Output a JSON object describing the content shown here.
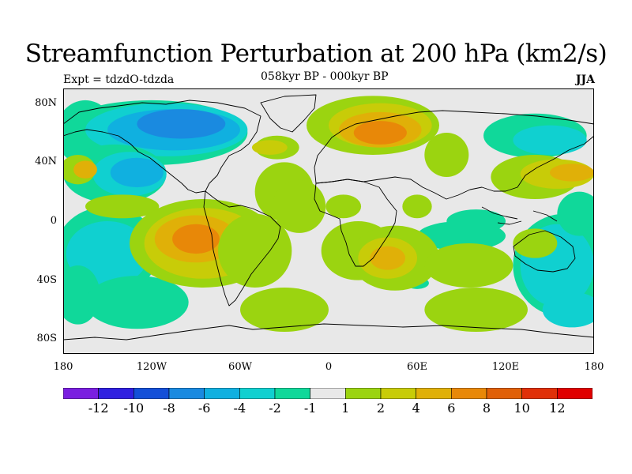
{
  "title": "Streamfunction Perturbation at 200 hPa (km2/s)",
  "subtitle_left": "Expt = tdzdO-tdzda",
  "subtitle_center": "058kyr BP - 000kyr BP",
  "subtitle_right": "JJA",
  "lat_ticks": [
    {
      "label": "80N",
      "value": 80
    },
    {
      "label": "40N",
      "value": 40
    },
    {
      "label": "0",
      "value": 0
    },
    {
      "label": "40S",
      "value": -40
    },
    {
      "label": "80S",
      "value": -80
    }
  ],
  "lon_ticks": [
    {
      "label": "180",
      "value": -180
    },
    {
      "label": "120W",
      "value": -120
    },
    {
      "label": "60W",
      "value": -60
    },
    {
      "label": "0",
      "value": 0
    },
    {
      "label": "60E",
      "value": 60
    },
    {
      "label": "120E",
      "value": 120
    },
    {
      "label": "180",
      "value": 180
    }
  ],
  "colorbar": {
    "colors": [
      "#7a1fe0",
      "#3020e0",
      "#1450d8",
      "#1a8ae0",
      "#10b0e0",
      "#10d0d0",
      "#10d89a",
      "#e8e8e8",
      "#9bd410",
      "#c8cc08",
      "#e0b008",
      "#e88808",
      "#e06008",
      "#e03008",
      "#e00000"
    ],
    "labels": [
      "-12",
      "-10",
      "-8",
      "-6",
      "-4",
      "-2",
      "-1",
      "1",
      "2",
      "4",
      "6",
      "8",
      "10",
      "12"
    ]
  },
  "map_extent": {
    "lon": [
      -180,
      180
    ],
    "lat": [
      -90,
      90
    ]
  },
  "map_colors": {
    "background": "#e8e8e8",
    "coast": "#000000"
  },
  "anomaly_blobs": [
    {
      "lon": -165,
      "lat": 60,
      "rx": 20,
      "ry": 22,
      "level": -1
    },
    {
      "lon": -120,
      "lat": 60,
      "rx": 65,
      "ry": 22,
      "level": -1
    },
    {
      "lon": -110,
      "lat": 62,
      "rx": 55,
      "ry": 18,
      "level": -2
    },
    {
      "lon": -105,
      "lat": 62,
      "rx": 45,
      "ry": 14,
      "level": -4
    },
    {
      "lon": -100,
      "lat": 66,
      "rx": 30,
      "ry": 10,
      "level": -6
    },
    {
      "lon": -145,
      "lat": 32,
      "rx": 35,
      "ry": 20,
      "level": -1
    },
    {
      "lon": -135,
      "lat": 32,
      "rx": 25,
      "ry": 15,
      "level": -2
    },
    {
      "lon": -130,
      "lat": 33,
      "rx": 18,
      "ry": 10,
      "level": -4
    },
    {
      "lon": -150,
      "lat": -20,
      "rx": 35,
      "ry": 30,
      "level": -1
    },
    {
      "lon": -150,
      "lat": -22,
      "rx": 28,
      "ry": 22,
      "level": -2
    },
    {
      "lon": -170,
      "lat": -50,
      "rx": 15,
      "ry": 20,
      "level": -1
    },
    {
      "lon": -130,
      "lat": -55,
      "rx": 35,
      "ry": 18,
      "level": -1
    },
    {
      "lon": -45,
      "lat": -35,
      "rx": 8,
      "ry": 5,
      "level": -1
    },
    {
      "lon": 140,
      "lat": 58,
      "rx": 35,
      "ry": 15,
      "level": -1
    },
    {
      "lon": 150,
      "lat": 55,
      "rx": 25,
      "ry": 10,
      "level": -2
    },
    {
      "lon": 160,
      "lat": -30,
      "rx": 35,
      "ry": 35,
      "level": -1
    },
    {
      "lon": 155,
      "lat": -30,
      "rx": 25,
      "ry": 28,
      "level": -2
    },
    {
      "lon": 165,
      "lat": -60,
      "rx": 20,
      "ry": 12,
      "level": -2
    },
    {
      "lon": 170,
      "lat": 5,
      "rx": 15,
      "ry": 15,
      "level": -1
    },
    {
      "lon": 90,
      "lat": -10,
      "rx": 30,
      "ry": 10,
      "level": -1
    },
    {
      "lon": 100,
      "lat": 0,
      "rx": 20,
      "ry": 8,
      "level": -1
    },
    {
      "lon": 60,
      "lat": -42,
      "rx": 8,
      "ry": 4,
      "level": -1
    },
    {
      "lon": 30,
      "lat": 65,
      "rx": 45,
      "ry": 20,
      "level": 1
    },
    {
      "lon": 35,
      "lat": 65,
      "rx": 35,
      "ry": 15,
      "level": 2
    },
    {
      "lon": 35,
      "lat": 62,
      "rx": 28,
      "ry": 12,
      "level": 4
    },
    {
      "lon": 35,
      "lat": 60,
      "rx": 18,
      "ry": 8,
      "level": 6
    },
    {
      "lon": 80,
      "lat": 45,
      "rx": 15,
      "ry": 15,
      "level": 1
    },
    {
      "lon": -35,
      "lat": 50,
      "rx": 15,
      "ry": 8,
      "level": 1
    },
    {
      "lon": -40,
      "lat": 50,
      "rx": 12,
      "ry": 5,
      "level": 2
    },
    {
      "lon": 140,
      "lat": 30,
      "rx": 30,
      "ry": 15,
      "level": 1
    },
    {
      "lon": 155,
      "lat": 32,
      "rx": 25,
      "ry": 10,
      "level": 2
    },
    {
      "lon": 165,
      "lat": 33,
      "rx": 15,
      "ry": 6,
      "level": 4
    },
    {
      "lon": -170,
      "lat": 35,
      "rx": 12,
      "ry": 10,
      "level": 1
    },
    {
      "lon": -165,
      "lat": 35,
      "rx": 8,
      "ry": 6,
      "level": 4
    },
    {
      "lon": -140,
      "lat": 10,
      "rx": 25,
      "ry": 8,
      "level": 1
    },
    {
      "lon": -30,
      "lat": 20,
      "rx": 20,
      "ry": 20,
      "level": 1
    },
    {
      "lon": -20,
      "lat": 10,
      "rx": 18,
      "ry": 18,
      "level": 1
    },
    {
      "lon": 10,
      "lat": 10,
      "rx": 12,
      "ry": 8,
      "level": 1
    },
    {
      "lon": -85,
      "lat": -15,
      "rx": 50,
      "ry": 30,
      "level": 1
    },
    {
      "lon": -85,
      "lat": -15,
      "rx": 40,
      "ry": 24,
      "level": 2
    },
    {
      "lon": -90,
      "lat": -12,
      "rx": 28,
      "ry": 16,
      "level": 4
    },
    {
      "lon": -90,
      "lat": -12,
      "rx": 16,
      "ry": 10,
      "level": 6
    },
    {
      "lon": -50,
      "lat": -20,
      "rx": 25,
      "ry": 25,
      "level": 1
    },
    {
      "lon": -30,
      "lat": -60,
      "rx": 30,
      "ry": 15,
      "level": 1
    },
    {
      "lon": 20,
      "lat": -20,
      "rx": 25,
      "ry": 20,
      "level": 1
    },
    {
      "lon": 45,
      "lat": -25,
      "rx": 30,
      "ry": 22,
      "level": 1
    },
    {
      "lon": 40,
      "lat": -25,
      "rx": 20,
      "ry": 14,
      "level": 2
    },
    {
      "lon": 40,
      "lat": -25,
      "rx": 12,
      "ry": 8,
      "level": 4
    },
    {
      "lon": 95,
      "lat": -30,
      "rx": 30,
      "ry": 15,
      "level": 1
    },
    {
      "lon": 100,
      "lat": -60,
      "rx": 35,
      "ry": 15,
      "level": 1
    },
    {
      "lon": 140,
      "lat": -15,
      "rx": 15,
      "ry": 10,
      "level": 1
    },
    {
      "lon": 60,
      "lat": 10,
      "rx": 10,
      "ry": 8,
      "level": 1
    }
  ]
}
